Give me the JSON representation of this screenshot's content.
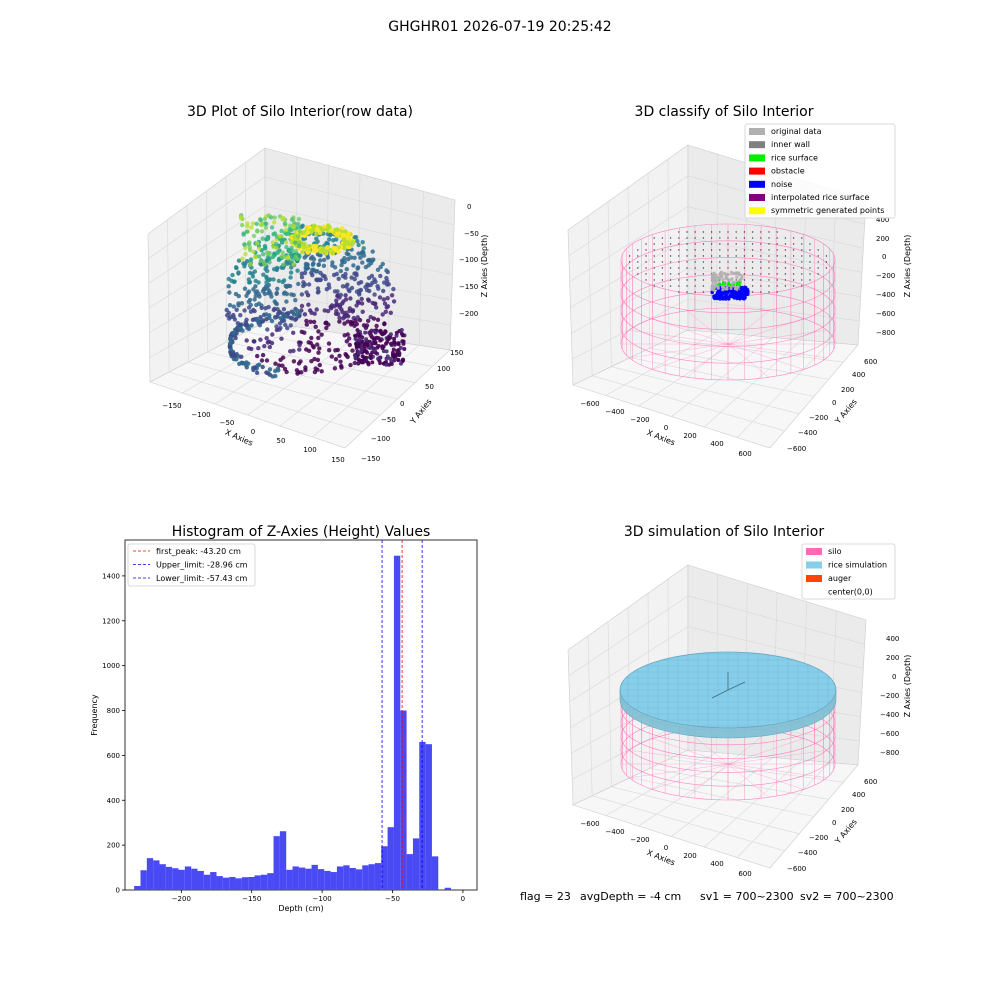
{
  "suptitle": "GHGHR01 2026-07-19 20:25:42",
  "footer": {
    "flag": "flag = 23",
    "avg_depth": "avgDepth = -4 cm",
    "sv1": "sv1 = 700~2300",
    "sv2": "sv2 = 700~2300"
  },
  "colors": {
    "original_data": "#b0b0b0",
    "inner_wall": "#808080",
    "rice_surface": "#00ee00",
    "obstacle": "#ff0000",
    "noise": "#0000ff",
    "interpolated_rice_surface": "#800080",
    "symmetric_generated_points": "#ffff00",
    "silo": "#ff69b4",
    "rice_simulation": "#87ceeb",
    "auger": "#ff4500",
    "histogram_bar": "#4a4af5"
  },
  "chart_data": [
    {
      "type": "scatter",
      "title": "3D Plot of Silo Interior(row data)",
      "xlabel": "X Axies",
      "ylabel": "Y Axies",
      "zlabel": "Z Axies (Depth)",
      "x_ticks": [
        "−150",
        "−100",
        "−50",
        "0",
        "50",
        "100",
        "150"
      ],
      "y_ticks": [
        "−150",
        "−100",
        "−50",
        "0",
        "50",
        "100",
        "150"
      ],
      "z_ticks": [
        "0",
        "−50",
        "−100",
        "−150",
        "−200"
      ],
      "colormap": "viridis"
    },
    {
      "type": "scatter",
      "title": "3D classify of Silo Interior",
      "xlabel": "X Axies",
      "ylabel": "Y Axies",
      "zlabel": "Z Axies (Depth)",
      "x_ticks": [
        "−600",
        "−400",
        "−200",
        "0",
        "200",
        "400",
        "600"
      ],
      "y_ticks": [
        "−600",
        "−400",
        "−200",
        "0",
        "200",
        "400",
        "600"
      ],
      "z_ticks": [
        "400",
        "200",
        "0",
        "−200",
        "−400",
        "−600",
        "−800"
      ],
      "legend": [
        {
          "label": "original data",
          "color_key": "original_data"
        },
        {
          "label": "inner wall",
          "color_key": "inner_wall"
        },
        {
          "label": "rice surface",
          "color_key": "rice_surface"
        },
        {
          "label": "obstacle",
          "color_key": "obstacle"
        },
        {
          "label": "noise",
          "color_key": "noise"
        },
        {
          "label": "interpolated rice surface",
          "color_key": "interpolated_rice_surface"
        },
        {
          "label": "symmetric generated points",
          "color_key": "symmetric_generated_points"
        }
      ],
      "legend_position": "top-right"
    },
    {
      "type": "bar",
      "title": "Histogram of Z-Axies (Height) Values",
      "xlabel": "Depth (cm)",
      "ylabel": "Frequency",
      "xlim": [
        -240,
        10
      ],
      "ylim": [
        0,
        1560
      ],
      "x_ticks": [
        -200,
        -150,
        -100,
        -50,
        0
      ],
      "x_tick_labels": [
        "−200",
        "−150",
        "−100",
        "−50",
        "0"
      ],
      "y_ticks": [
        0,
        200,
        400,
        600,
        800,
        1000,
        1200,
        1400
      ],
      "bin_start": -233.5,
      "bin_width": 4.5,
      "values": [
        18,
        88,
        142,
        132,
        115,
        103,
        97,
        90,
        105,
        95,
        85,
        68,
        80,
        62,
        55,
        58,
        52,
        57,
        58,
        65,
        68,
        75,
        240,
        262,
        90,
        105,
        100,
        95,
        112,
        93,
        85,
        80,
        105,
        110,
        98,
        92,
        110,
        115,
        120,
        195,
        280,
        1490,
        800,
        160,
        230,
        660,
        650,
        150,
        0,
        10
      ],
      "lines": [
        {
          "label": "first_peak: -43.20 cm",
          "x": -43.2,
          "color": "#ff0000"
        },
        {
          "label": "Upper_limit: -28.96 cm",
          "x": -28.96,
          "color": "#0000ff"
        },
        {
          "label": "Lower_limit: -57.43 cm",
          "x": -57.43,
          "color": "#0000ff"
        }
      ],
      "legend_position": "top-left"
    },
    {
      "type": "scatter",
      "title": "3D simulation of Silo Interior",
      "xlabel": "X Axies",
      "ylabel": "Y Axies",
      "zlabel": "Z Axies (Depth)",
      "x_ticks": [
        "−600",
        "−400",
        "−200",
        "0",
        "200",
        "400",
        "600"
      ],
      "y_ticks": [
        "−600",
        "−400",
        "−200",
        "0",
        "200",
        "400",
        "600"
      ],
      "z_ticks": [
        "400",
        "200",
        "0",
        "−200",
        "−400",
        "−600",
        "−800"
      ],
      "legend": [
        {
          "label": "silo",
          "color_key": "silo"
        },
        {
          "label": "rice simulation",
          "color_key": "rice_simulation"
        },
        {
          "label": "auger",
          "color_key": "auger"
        },
        {
          "label": "center(0,0)",
          "color_key": ""
        }
      ],
      "legend_position": "top-right"
    }
  ]
}
